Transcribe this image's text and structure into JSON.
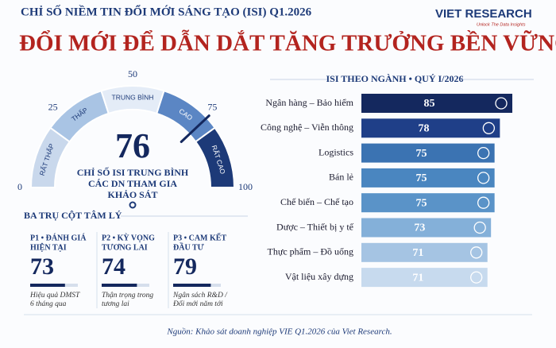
{
  "header": {
    "subtitle": "CHỈ SỐ NIỀM TIN ĐỔI MỚI SÁNG TẠO (ISI) Q1.2026",
    "title": "ĐỔI MỚI ĐỂ DẪN DẮT TĂNG TRƯỞNG BỀN VỮNG",
    "logo": "VIET RESEARCH",
    "tagline": "Unlock The Data Insights"
  },
  "chart_data": [
    {
      "type": "gauge",
      "value": 76,
      "lim": [
        0,
        100
      ],
      "ticks": [
        0,
        25,
        50,
        75,
        100
      ],
      "bands": [
        "RẤT THẤP",
        "THẤP",
        "TRUNG BÌNH",
        "CAO",
        "RẤT CAO"
      ],
      "band_colors": [
        "#c9d8ec",
        "#a9c4e4",
        "#e4ecf7",
        "#5b86c4",
        "#1d3a78"
      ],
      "caption": [
        "CHỈ SỐ ISI TRUNG BÌNH",
        "CÁC DN THAM GIA",
        "KHẢO SÁT"
      ]
    },
    {
      "type": "hbar",
      "title": "ISI THEO NGÀNH • QUÝ I/2026",
      "categories": [
        "Ngân hàng – Bảo hiểm",
        "Công nghệ – Viễn thông",
        "Logistics",
        "Bán lẻ",
        "Chế biến – Chế tạo",
        "Dược – Thiết bị y tế",
        "Thực phẩm – Đồ uống",
        "Vật liệu xây dựng"
      ],
      "values": [
        85,
        78,
        75,
        75,
        75,
        73,
        71,
        71
      ],
      "colors": [
        "#14285e",
        "#1f3f88",
        "#3b73b2",
        "#4a86c0",
        "#5a93c8",
        "#84b0d9",
        "#a5c4e3",
        "#c7daee"
      ],
      "xlim": [
        0,
        85
      ]
    }
  ],
  "pillars": {
    "title": "BA TRỤ CỘT TÂM LÝ",
    "items": [
      {
        "label": [
          "P1 • ĐÁNH GIÁ",
          "HIỆN TẠI"
        ],
        "value": 73,
        "note": [
          "Hiệu quả DMST",
          "6 tháng qua"
        ]
      },
      {
        "label": [
          "P2 • KỲ VỌNG",
          "TƯƠNG LAI"
        ],
        "value": 74,
        "note": [
          "Thận trọng trong",
          "tương lai"
        ]
      },
      {
        "label": [
          "P3 • CAM KẾT",
          "ĐẦU TƯ"
        ],
        "value": 79,
        "note": [
          "Ngân sách R&D /",
          "Đổi mới năm tới"
        ]
      }
    ]
  },
  "source": "Nguồn: Khảo sát doanh nghiệp VIE Q1.2026 của Viet Research."
}
